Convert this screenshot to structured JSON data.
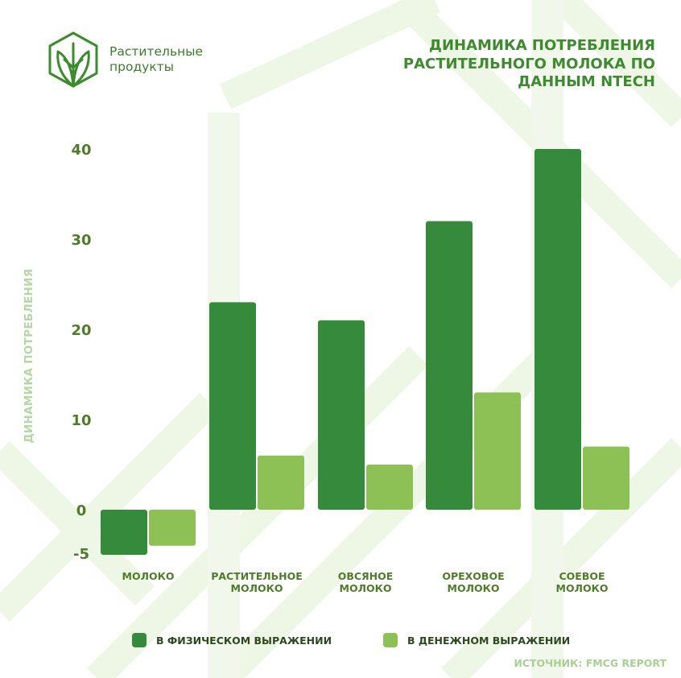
{
  "brand": {
    "line1": "Растительные",
    "line2": "продукты"
  },
  "title": {
    "line1": "ДИНАМИКА ПОТРЕБЛЕНИЯ",
    "line2": "РАСТИТЕЛЬНОГО МОЛОКА ПО",
    "line3": "ДАННЫМ NTECH"
  },
  "legend": {
    "physical": "В ФИЗИЧЕСКОМ ВЫРАЖЕНИИ",
    "money": "В ДЕНЕЖНОМ ВЫРАЖЕНИИ"
  },
  "source": "ИСТОЧНИК: FMCG REPORT",
  "colors": {
    "physical": "#368a3b",
    "money": "#8ec155",
    "accent": "#3e8a2f",
    "background_pattern": "#eef6e6"
  },
  "chart_data": {
    "type": "bar",
    "title": "ДИНАМИКА ПОТРЕБЛЕНИЯ РАСТИТЕЛЬНОГО МОЛОКА ПО ДАННЫМ NTECH",
    "ylabel": "ДИНАМИКА ПОТРЕБЛЕНИЯ",
    "xlabel": "",
    "categories": [
      [
        "МОЛОКО"
      ],
      [
        "РАСТИТЕЛЬНОЕ",
        "МОЛОКО"
      ],
      [
        "ОВСЯНОЕ",
        "МОЛОКО"
      ],
      [
        "ОРЕХОВОЕ",
        "МОЛОКО"
      ],
      [
        "СОЕВОЕ",
        "МОЛОКО"
      ]
    ],
    "series": [
      {
        "name": "В ФИЗИЧЕСКОМ ВЫРАЖЕНИИ",
        "values": [
          -5,
          23,
          21,
          32,
          40
        ]
      },
      {
        "name": "В ДЕНЕЖНОМ ВЫРАЖЕНИИ",
        "values": [
          -4,
          6,
          5,
          13,
          7
        ]
      }
    ],
    "yticks": [
      "40",
      "30",
      "20",
      "10",
      "0",
      "-5"
    ],
    "ylim": [
      -5,
      40
    ],
    "grid": false,
    "legend_position": "bottom"
  }
}
